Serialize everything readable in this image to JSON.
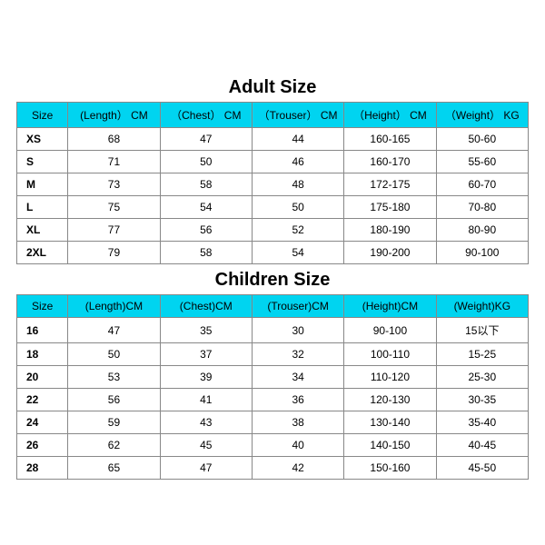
{
  "colors": {
    "header_bg": "#00d4f0",
    "border": "#888888",
    "text": "#000000",
    "bg": "#ffffff"
  },
  "typography": {
    "title_fontsize": 20,
    "cell_fontsize": 12,
    "title_weight": "bold",
    "size_label_weight": "bold"
  },
  "adult": {
    "title": "Adult Size",
    "columns": [
      "Size",
      "(Length） CM",
      "（Chest） CM",
      "（Trouser） CM",
      "（Height） CM",
      "（Weight） KG"
    ],
    "rows": [
      [
        "XS",
        "68",
        "47",
        "44",
        "160-165",
        "50-60"
      ],
      [
        "S",
        "71",
        "50",
        "46",
        "160-170",
        "55-60"
      ],
      [
        "M",
        "73",
        "58",
        "48",
        "172-175",
        "60-70"
      ],
      [
        "L",
        "75",
        "54",
        "50",
        "175-180",
        "70-80"
      ],
      [
        "XL",
        "77",
        "56",
        "52",
        "180-190",
        "80-90"
      ],
      [
        "2XL",
        "79",
        "58",
        "54",
        "190-200",
        "90-100"
      ]
    ]
  },
  "children": {
    "title": "Children Size",
    "columns": [
      "Size",
      "(Length)CM",
      "(Chest)CM",
      "(Trouser)CM",
      "(Height)CM",
      "(Weight)KG"
    ],
    "rows": [
      [
        "16",
        "47",
        "35",
        "30",
        "90-100",
        "15以下"
      ],
      [
        "18",
        "50",
        "37",
        "32",
        "100-110",
        "15-25"
      ],
      [
        "20",
        "53",
        "39",
        "34",
        "110-120",
        "25-30"
      ],
      [
        "22",
        "56",
        "41",
        "36",
        "120-130",
        "30-35"
      ],
      [
        "24",
        "59",
        "43",
        "38",
        "130-140",
        "35-40"
      ],
      [
        "26",
        "62",
        "45",
        "40",
        "140-150",
        "40-45"
      ],
      [
        "28",
        "65",
        "47",
        "42",
        "150-160",
        "45-50"
      ]
    ]
  }
}
